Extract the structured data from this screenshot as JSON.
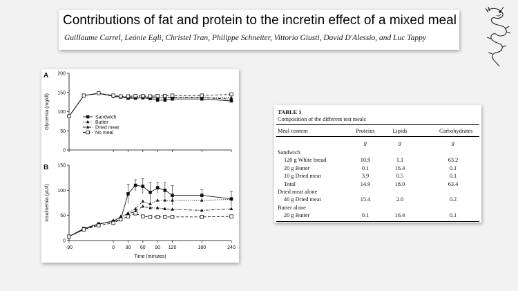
{
  "header": {
    "title": "Contributions of fat and protein to the incretin effect of a mixed meal",
    "authors": "Guillaume Carrel, Leónie Egli, Christel Tran, Philippe Schneiter, Vittorio Giusti, David D'Alessio, and Luc Tappy"
  },
  "logo": {
    "icon": "sea-serpent-logo-icon"
  },
  "figure": {
    "x_label": "Time (minutes)",
    "x_ticks": [
      "-90",
      "0",
      "30",
      "60",
      "90",
      "120",
      "180",
      "240"
    ],
    "panel_a": {
      "letter": "A",
      "ylabel": "Glycemia (mg/dl)",
      "yticks": [
        "0",
        "50",
        "100",
        "150",
        "200"
      ]
    },
    "panel_b": {
      "letter": "B",
      "ylabel": "Insulinemia (µU/l)",
      "yticks": [
        "0",
        "50",
        "100",
        "150"
      ]
    },
    "legend": [
      "Sandwich",
      "Butter",
      "Dried meat",
      "No meal"
    ]
  },
  "chart_data": [
    {
      "type": "line",
      "panel": "A",
      "x": [
        -90,
        -60,
        -30,
        0,
        15,
        30,
        45,
        60,
        75,
        90,
        105,
        120,
        180,
        240
      ],
      "ylabel": "Glycemia (mg/dl)",
      "xlabel": "Time (minutes)",
      "xlim": [
        -90,
        240
      ],
      "ylim": [
        0,
        200
      ],
      "legend_placement": "left",
      "series": [
        {
          "name": "Sandwich",
          "marker": "filled-square",
          "line": "solid",
          "values": [
            88,
            142,
            148,
            140,
            138,
            135,
            135,
            136,
            134,
            130,
            130,
            133,
            133,
            128
          ]
        },
        {
          "name": "Butter",
          "marker": "filled-triangle",
          "line": "dotted",
          "values": [
            88,
            142,
            147,
            142,
            140,
            137,
            139,
            140,
            137,
            136,
            138,
            138,
            138,
            136
          ]
        },
        {
          "name": "Dried meat",
          "marker": "filled-triangle",
          "line": "dash-dot",
          "values": [
            88,
            142,
            147,
            141,
            139,
            136,
            138,
            139,
            136,
            135,
            136,
            136,
            136,
            133
          ]
        },
        {
          "name": "No meal",
          "marker": "open-square",
          "line": "dashed",
          "values": [
            88,
            142,
            148,
            142,
            140,
            140,
            141,
            141,
            140,
            141,
            141,
            142,
            142,
            145
          ]
        }
      ]
    },
    {
      "type": "line",
      "panel": "B",
      "x": [
        -90,
        -60,
        -30,
        0,
        15,
        30,
        45,
        60,
        75,
        90,
        105,
        120,
        180,
        240
      ],
      "ylabel": "Insulinemia (µU/l)",
      "xlabel": "Time (minutes)",
      "xlim": [
        -90,
        240
      ],
      "ylim": [
        0,
        150
      ],
      "series": [
        {
          "name": "Sandwich",
          "marker": "filled-square",
          "line": "solid",
          "values": [
            8,
            24,
            33,
            38,
            42,
            93,
            110,
            108,
            96,
            105,
            100,
            90,
            90,
            83
          ]
        },
        {
          "name": "Butter",
          "marker": "filled-triangle",
          "line": "dotted",
          "values": [
            8,
            22,
            32,
            40,
            45,
            55,
            63,
            78,
            73,
            80,
            80,
            80,
            80,
            82
          ]
        },
        {
          "name": "Dried meat",
          "marker": "filled-triangle",
          "line": "dash-dot",
          "values": [
            8,
            22,
            33,
            38,
            48,
            53,
            58,
            68,
            65,
            65,
            63,
            62,
            60,
            63
          ]
        },
        {
          "name": "No meal",
          "marker": "open-square",
          "line": "dashed",
          "values": [
            8,
            22,
            30,
            35,
            42,
            48,
            54,
            48,
            47,
            47,
            47,
            47,
            47,
            48
          ]
        }
      ]
    },
    {
      "type": "table",
      "label": "TABLE 1",
      "caption": "Composition of the different test meals",
      "columns": [
        "Meal content",
        "Proteins",
        "Lipids",
        "Carbohydrates"
      ],
      "units": [
        "",
        "g",
        "g",
        "g"
      ],
      "rows": [
        {
          "label": "Sandwich",
          "indent": false,
          "values": [
            "",
            "",
            ""
          ]
        },
        {
          "label": "120 g White bread",
          "indent": true,
          "values": [
            "10.9",
            "1.1",
            "63.2"
          ]
        },
        {
          "label": "20 g Butter",
          "indent": true,
          "values": [
            "0.1",
            "16.4",
            "0.1"
          ]
        },
        {
          "label": "10 g Dried meat",
          "indent": true,
          "values": [
            "3.9",
            "0.5",
            "0.1"
          ]
        },
        {
          "label": "Total",
          "indent": true,
          "values": [
            "14.9",
            "18.0",
            "63.4"
          ]
        },
        {
          "label": "Dried meat alone",
          "indent": false,
          "values": [
            "",
            "",
            ""
          ]
        },
        {
          "label": "40 g Dried meat",
          "indent": true,
          "values": [
            "15.4",
            "2.0",
            "0.2"
          ]
        },
        {
          "label": "Butter alone",
          "indent": false,
          "values": [
            "",
            "",
            ""
          ]
        },
        {
          "label": "20 g Butter",
          "indent": true,
          "values": [
            "0.1",
            "16.4",
            "0.1"
          ]
        }
      ]
    }
  ]
}
